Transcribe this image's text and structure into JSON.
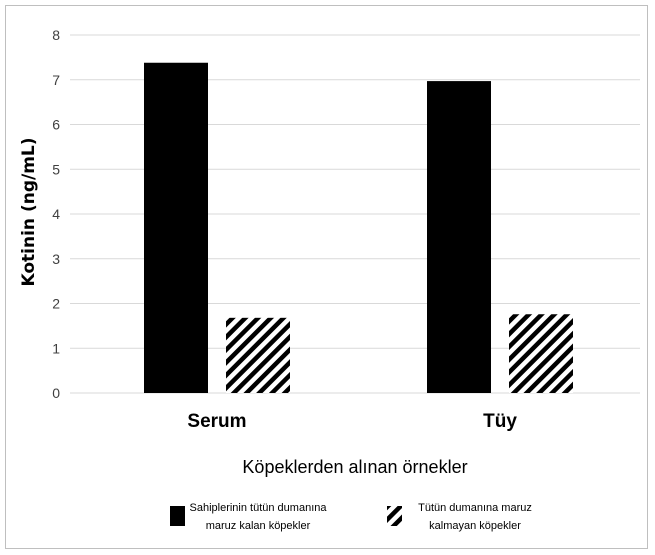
{
  "chart_data": {
    "type": "bar",
    "categories": [
      "Serum",
      "Tüy"
    ],
    "series": [
      {
        "name": "Sahiplerinin tütün dumanına maruz kalan köpekler",
        "legend_lines": [
          "Sahiplerinin tütün dumanına",
          "maruz kalan köpekler"
        ],
        "values": [
          7.38,
          6.97
        ],
        "fill": "#000000",
        "pattern": "solid"
      },
      {
        "name": "Tütün dumanına maruz kalmayan köpekler",
        "legend_lines": [
          "Tütün dumanına maruz",
          "kalmayan köpekler"
        ],
        "values": [
          1.68,
          1.76
        ],
        "fill": "#000000",
        "pattern": "diagonal-stripes"
      }
    ],
    "xlabel": "Köpeklerden alınan örnekler",
    "ylabel": "Kotinin (ng/mL)",
    "ylim": [
      0,
      8
    ],
    "yticks": [
      0,
      1,
      2,
      3,
      4,
      5,
      6,
      7,
      8
    ],
    "grid": true,
    "legend_position": "bottom",
    "colors": {
      "gridline": "#d9d9d9",
      "border": "#bfbfbf",
      "tick_text": "#404040"
    }
  }
}
